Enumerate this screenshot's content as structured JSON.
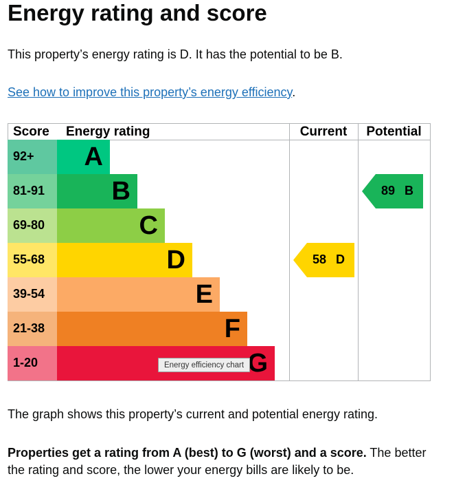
{
  "heading": "Energy rating and score",
  "intro": "This property’s energy rating is D. It has the potential to be B.",
  "link": {
    "text": "See how to improve this property’s energy efficiency",
    "suffix": "."
  },
  "table": {
    "headers": [
      "Score",
      "Energy rating",
      "Current",
      "Potential"
    ],
    "bands": [
      {
        "score": "92+",
        "letter": "A",
        "color": "#00c781",
        "score_color": "#5fc8a0"
      },
      {
        "score": "81-91",
        "letter": "B",
        "color": "#19b459",
        "score_color": "#75d29b"
      },
      {
        "score": "69-80",
        "letter": "C",
        "color": "#8dce46",
        "score_color": "#bbe290"
      },
      {
        "score": "55-68",
        "letter": "D",
        "color": "#ffd500",
        "score_color": "#ffe666"
      },
      {
        "score": "39-54",
        "letter": "E",
        "color": "#fcaa65",
        "score_color": "#fdcca3"
      },
      {
        "score": "21-38",
        "letter": "F",
        "color": "#ef8023",
        "score_color": "#f5b37b"
      },
      {
        "score": "1-20",
        "letter": "G",
        "color": "#e9153b",
        "score_color": "#f27389"
      }
    ],
    "current": {
      "score": 58,
      "letter": "D"
    },
    "potential": {
      "score": 89,
      "letter": "B"
    },
    "tooltip": "Energy efficiency chart"
  },
  "caption": "The graph shows this property’s current and potential energy rating.",
  "note": {
    "bold": "Properties get a rating from A (best) to G (worst) and a score.",
    "rest": " The better the rating and score, the lower your energy bills are likely to be."
  }
}
